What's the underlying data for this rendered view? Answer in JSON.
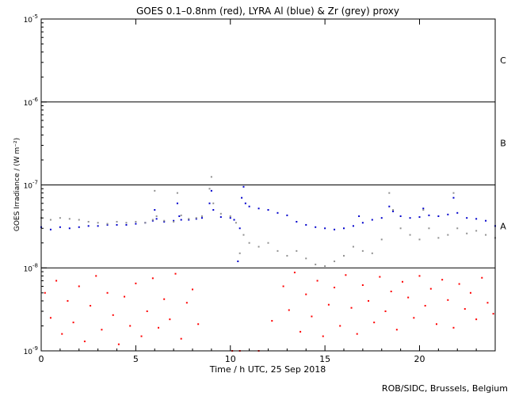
{
  "chart_data": {
    "type": "scatter",
    "title": "GOES 0.1–0.8nm (red), LYRA Al (blue) & Zr (grey) proxy",
    "xlabel": "Time / h UTC, 25 Sep 2018",
    "ylabel": "GOES Irradiance / (W m⁻²)",
    "xlim": [
      0,
      24
    ],
    "ylim": [
      1e-09,
      1e-05
    ],
    "yscale": "log",
    "x_ticks": [
      0,
      5,
      10,
      15,
      20
    ],
    "y_ticks": [
      {
        "value": 1e-05,
        "base": "10",
        "exp": "-5"
      },
      {
        "value": 1e-06,
        "base": "10",
        "exp": "-6"
      },
      {
        "value": 1e-07,
        "base": "10",
        "exp": "-7"
      },
      {
        "value": 1e-08,
        "base": "10",
        "exp": "-8"
      },
      {
        "value": 1e-09,
        "base": "10",
        "exp": "-9"
      }
    ],
    "flare_class_lines": [
      1e-06,
      1e-07,
      1e-08
    ],
    "class_labels": [
      {
        "label": "C",
        "value": 3.2e-06
      },
      {
        "label": "B",
        "value": 3.2e-07
      },
      {
        "label": "A",
        "value": 3.2e-08
      }
    ],
    "series": [
      {
        "name": "GOES 0.1–0.8nm",
        "color": "#ff0000",
        "note_style": "scattered points below 1e-8",
        "x": [
          0.2,
          0.5,
          0.8,
          1.1,
          1.4,
          1.7,
          2.0,
          2.3,
          2.6,
          2.9,
          3.2,
          3.5,
          3.8,
          4.1,
          4.4,
          4.7,
          5.0,
          5.3,
          5.6,
          5.9,
          6.2,
          6.5,
          6.8,
          7.1,
          7.4,
          7.7,
          8.0,
          8.3,
          10.1,
          10.5,
          11.5,
          12.2,
          12.8,
          13.1,
          13.4,
          13.7,
          14.0,
          14.3,
          14.6,
          14.9,
          15.2,
          15.5,
          15.8,
          16.1,
          16.4,
          16.7,
          17.0,
          17.3,
          17.6,
          17.9,
          18.2,
          18.5,
          18.8,
          19.1,
          19.4,
          19.7,
          20.0,
          20.3,
          20.6,
          20.9,
          21.2,
          21.5,
          21.8,
          22.1,
          22.4,
          22.7,
          23.0,
          23.3,
          23.6,
          23.9
        ],
        "y": [
          5e-09,
          2.5e-09,
          7e-09,
          1.6e-09,
          4e-09,
          2.2e-09,
          6e-09,
          1.3e-09,
          3.5e-09,
          8e-09,
          1.8e-09,
          5e-09,
          2.7e-09,
          1.2e-09,
          4.5e-09,
          2e-09,
          6.5e-09,
          1.5e-09,
          3e-09,
          7.5e-09,
          1.9e-09,
          4.2e-09,
          2.4e-09,
          8.5e-09,
          1.4e-09,
          3.8e-09,
          5.5e-09,
          2.1e-09,
          1e-09,
          1e-09,
          1e-09,
          2.3e-09,
          6e-09,
          3.1e-09,
          8.8e-09,
          1.7e-09,
          4.8e-09,
          2.6e-09,
          7e-09,
          1.5e-09,
          3.6e-09,
          5.8e-09,
          2e-09,
          8.2e-09,
          3.3e-09,
          1.6e-09,
          6.2e-09,
          4e-09,
          2.2e-09,
          7.8e-09,
          3e-09,
          5.2e-09,
          1.8e-09,
          6.8e-09,
          4.4e-09,
          2.5e-09,
          8e-09,
          3.5e-09,
          5.6e-09,
          2.1e-09,
          7.2e-09,
          4.1e-09,
          1.9e-09,
          6.4e-09,
          3.2e-09,
          5e-09,
          2.4e-09,
          7.6e-09,
          3.8e-09,
          2.8e-09
        ]
      },
      {
        "name": "LYRA Al",
        "color": "#0000cc",
        "x": [
          0,
          0.5,
          1,
          1.5,
          2,
          2.5,
          3,
          3.5,
          4,
          4.5,
          5,
          5.5,
          5.9,
          6.0,
          6.1,
          6.5,
          7,
          7.2,
          7.3,
          7.4,
          7.8,
          8.2,
          8.5,
          8.9,
          9.0,
          9.1,
          9.5,
          10,
          10.2,
          10.4,
          10.5,
          10.6,
          10.7,
          10.8,
          11,
          11.5,
          12,
          12.5,
          13,
          13.5,
          14,
          14.5,
          15,
          15.5,
          16,
          16.5,
          16.8,
          17,
          17.5,
          18,
          18.4,
          18.6,
          19,
          19.5,
          20,
          20.2,
          20.5,
          21,
          21.5,
          21.8,
          22,
          22.5,
          23,
          23.5,
          24
        ],
        "y": [
          3.1e-08,
          2.9e-08,
          3.1e-08,
          3e-08,
          3.1e-08,
          3.2e-08,
          3.2e-08,
          3.3e-08,
          3.3e-08,
          3.3e-08,
          3.4e-08,
          3.5e-08,
          3.7e-08,
          5e-08,
          3.9e-08,
          3.6e-08,
          3.7e-08,
          6e-08,
          4.2e-08,
          3.8e-08,
          3.8e-08,
          3.9e-08,
          4e-08,
          6e-08,
          8.5e-08,
          5e-08,
          4.1e-08,
          4e-08,
          3.8e-08,
          1.2e-08,
          3e-08,
          7e-08,
          9.5e-08,
          6e-08,
          5.5e-08,
          5.2e-08,
          5e-08,
          4.6e-08,
          4.3e-08,
          3.6e-08,
          3.3e-08,
          3.1e-08,
          3e-08,
          2.9e-08,
          3e-08,
          3.2e-08,
          4.2e-08,
          3.5e-08,
          3.8e-08,
          4e-08,
          5.5e-08,
          4.8e-08,
          4.2e-08,
          4e-08,
          4.1e-08,
          5.2e-08,
          4.3e-08,
          4.2e-08,
          4.4e-08,
          7e-08,
          4.6e-08,
          4e-08,
          3.9e-08,
          3.7e-08,
          3.2e-08
        ]
      },
      {
        "name": "LYRA Zr",
        "color": "#909090",
        "x": [
          0,
          0.5,
          1,
          1.5,
          2,
          2.5,
          3,
          3.5,
          4,
          4.5,
          5,
          5.5,
          5.9,
          6.0,
          6.1,
          6.5,
          7,
          7.2,
          7.4,
          7.8,
          8.2,
          8.5,
          8.9,
          9.0,
          9.1,
          9.5,
          10,
          10.3,
          10.5,
          10.7,
          11,
          11.5,
          12,
          12.5,
          13,
          13.5,
          14,
          14.5,
          15,
          15.5,
          16,
          16.5,
          17,
          17.5,
          18,
          18.4,
          18.6,
          19,
          19.5,
          20,
          20.2,
          20.5,
          21,
          21.5,
          21.8,
          22,
          22.5,
          23,
          23.5,
          24
        ],
        "y": [
          4e-08,
          3.8e-08,
          4e-08,
          3.9e-08,
          3.8e-08,
          3.6e-08,
          3.5e-08,
          3.4e-08,
          3.6e-08,
          3.5e-08,
          3.6e-08,
          3.5e-08,
          3.8e-08,
          8.5e-08,
          4.2e-08,
          3.7e-08,
          3.6e-08,
          8e-08,
          4.3e-08,
          3.9e-08,
          4e-08,
          4.2e-08,
          9e-08,
          1.25e-07,
          6e-08,
          4.5e-08,
          4.2e-08,
          3.5e-08,
          1.5e-08,
          2.5e-08,
          2e-08,
          1.8e-08,
          2e-08,
          1.6e-08,
          1.4e-08,
          1.6e-08,
          1.3e-08,
          1.1e-08,
          1.05e-08,
          1.2e-08,
          1.4e-08,
          1.8e-08,
          1.6e-08,
          1.5e-08,
          2.2e-08,
          8e-08,
          5e-08,
          3e-08,
          2.5e-08,
          2.2e-08,
          5e-08,
          3e-08,
          2.3e-08,
          2.5e-08,
          8e-08,
          3e-08,
          2.6e-08,
          2.8e-08,
          2.5e-08,
          2.3e-08
        ]
      }
    ]
  },
  "credit": "ROB/SIDC, Brussels, Belgium"
}
